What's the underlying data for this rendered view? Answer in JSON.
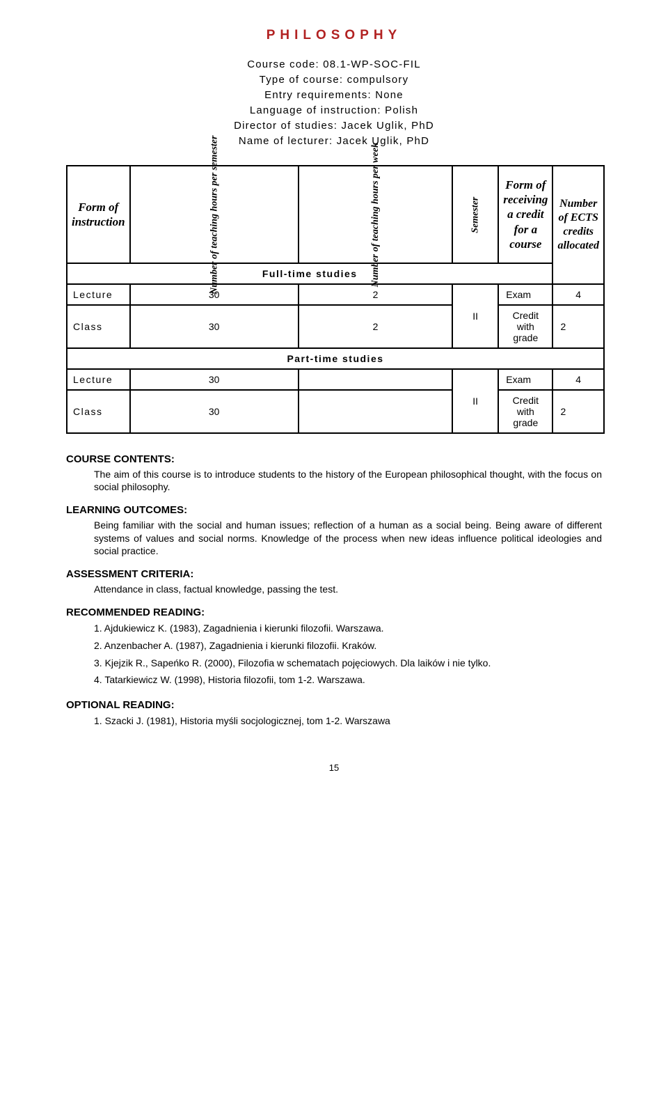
{
  "title": "PHILOSOPHY",
  "meta": {
    "course_code_label": "Course code:",
    "course_code": "08.1-WP-SOC-FIL",
    "type_label": "Type of course:",
    "type": "compulsory",
    "entry_label": "Entry requirements:",
    "entry": "None",
    "lang_label": "Language of instruction:",
    "lang": "Polish",
    "director_label": "Director of studies:",
    "director": "Jacek Uglik, PhD",
    "lecturer_label": "Name of lecturer:",
    "lecturer": "Jacek Uglik, PhD"
  },
  "table": {
    "headers": {
      "form_of_instruction": "Form of instruction",
      "hours_per_semester": "Number of teaching hours per semester",
      "hours_per_week": "Number of teaching hours per week",
      "semester": "Semester",
      "form_receiving": "Form of receiving a credit for a course",
      "ects": "Number of ECTS credits allocated"
    },
    "section_full": "Full-time studies",
    "section_part": "Part-time studies",
    "full_rows": [
      {
        "name": "Lecture",
        "hrs_sem": "30",
        "hrs_wk": "2",
        "sem": "II",
        "credit": "Exam",
        "ects": "4"
      },
      {
        "name": "Class",
        "hrs_sem": "30",
        "hrs_wk": "2",
        "sem": "",
        "credit": "Credit with grade",
        "ects": "2"
      }
    ],
    "part_rows": [
      {
        "name": "Lecture",
        "hrs_sem": "30",
        "hrs_wk": "",
        "sem": "II",
        "credit": "Exam",
        "ects": "4"
      },
      {
        "name": "Class",
        "hrs_sem": "30",
        "hrs_wk": "",
        "sem": "",
        "credit": "Credit with grade",
        "ects": "2"
      }
    ]
  },
  "sections": {
    "contents_h": "COURSE CONTENTS:",
    "contents_p": "The aim of this course is to introduce students to the history of the European philosophical thought, with the focus on social philosophy.",
    "outcomes_h": "LEARNING OUTCOMES:",
    "outcomes_p": "Being familiar with the social and human issues; reflection of a human as a social being. Being aware of different systems of values and social norms. Knowledge of the process when new ideas influence political ideologies and social practice.",
    "assess_h": "ASSESSMENT CRITERIA:",
    "assess_p": "Attendance in class, factual knowledge, passing the test.",
    "rec_h": "RECOMMENDED READING:",
    "rec_list": [
      "1.  Ajdukiewicz K. (1983), Zagadnienia i kierunki filozofii. Warszawa.",
      "2.  Anzenbacher A. (1987), Zagadnienia i kierunki filozofii. Kraków.",
      "3.  Kjejzik R., Sapeńko R. (2000), Filozofia w schematach pojęciowych. Dla laików i nie tylko.",
      "4.  Tatarkiewicz W. (1998), Historia filozofii, tom 1-2. Warszawa."
    ],
    "opt_h": "OPTIONAL READING:",
    "opt_list": [
      "1.  Szacki J. (1981), Historia myśli socjologicznej, tom 1-2. Warszawa"
    ]
  },
  "page_number": "15",
  "colors": {
    "title": "#b22222",
    "border": "#000000",
    "text": "#000000",
    "background": "#ffffff"
  }
}
